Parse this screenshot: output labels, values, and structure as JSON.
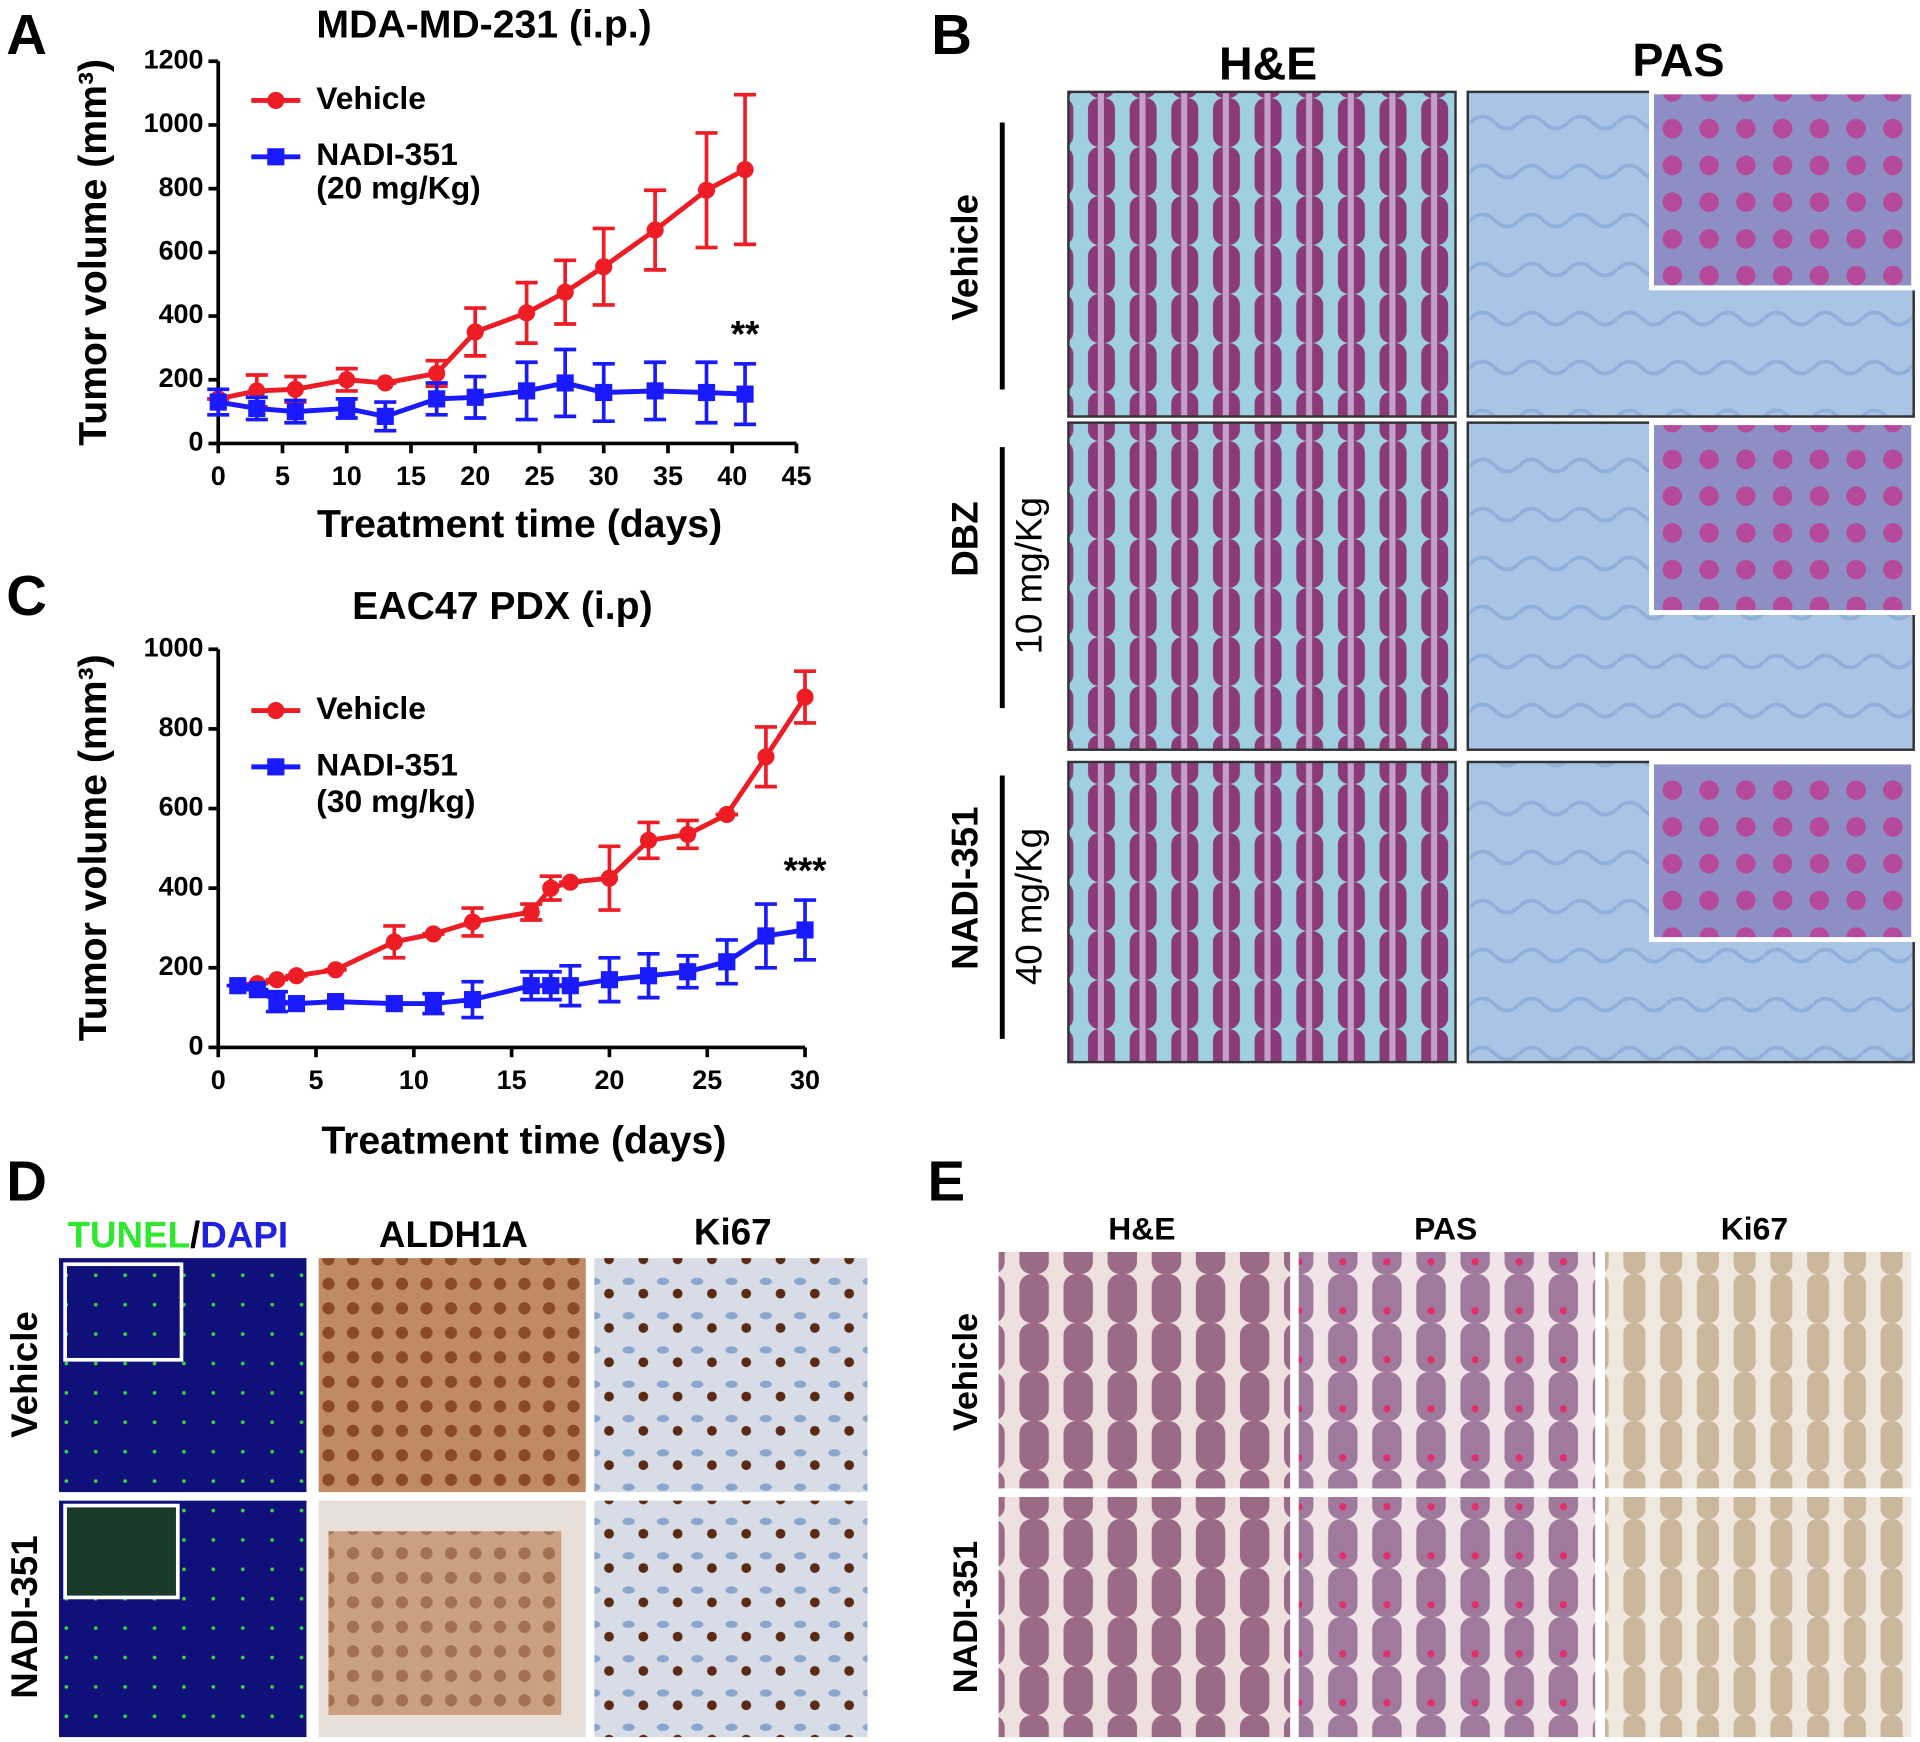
{
  "chart_data": [
    {
      "type": "line",
      "panel_label": "A",
      "title": "MDA-MD-231 (i.p.)",
      "x_label": "Treatment time (days)",
      "y_label": "Tumor volume (mm³)",
      "xlim": [
        0,
        45
      ],
      "xticks": [
        0,
        5,
        10,
        15,
        20,
        25,
        30,
        35,
        40,
        45
      ],
      "ylim": [
        0,
        1200
      ],
      "yticks": [
        0,
        200,
        400,
        600,
        800,
        1000,
        1200
      ],
      "series": [
        {
          "name": "Vehicle",
          "color": "#ee1c24",
          "marker": "circle",
          "x": [
            0,
            3,
            6,
            10,
            13,
            17,
            20,
            24,
            27,
            30,
            34,
            38,
            41
          ],
          "values": [
            140,
            165,
            170,
            200,
            190,
            220,
            350,
            410,
            475,
            555,
            670,
            795,
            860
          ],
          "errors": [
            0,
            50,
            40,
            35,
            0,
            40,
            75,
            95,
            100,
            120,
            125,
            180,
            235
          ]
        },
        {
          "name": "NADI-351",
          "dose": "(20 mg/Kg)",
          "color": "#1a1aff",
          "marker": "square",
          "x": [
            0,
            3,
            6,
            10,
            13,
            17,
            20,
            24,
            27,
            30,
            34,
            38,
            41
          ],
          "values": [
            130,
            110,
            100,
            110,
            85,
            140,
            145,
            165,
            190,
            160,
            165,
            160,
            155
          ],
          "errors": [
            40,
            35,
            35,
            30,
            45,
            50,
            65,
            90,
            105,
            90,
            90,
            95,
            95
          ]
        }
      ],
      "annotations": [
        "**"
      ]
    },
    {
      "type": "line",
      "panel_label": "C",
      "title": "EAC47 PDX (i.p)",
      "x_label": "Treatment time (days)",
      "y_label": "Tumor volume (mm³)",
      "xlim": [
        0,
        30
      ],
      "xticks": [
        0,
        5,
        10,
        15,
        20,
        25,
        30
      ],
      "ylim": [
        0,
        1000
      ],
      "yticks": [
        0,
        200,
        400,
        600,
        800,
        1000
      ],
      "series": [
        {
          "name": "Vehicle",
          "color": "#ee1c24",
          "marker": "circle",
          "x": [
            1,
            2,
            3,
            4,
            6,
            9,
            11,
            13,
            16,
            17,
            18,
            20,
            22,
            24,
            26,
            28,
            30
          ],
          "values": [
            155,
            160,
            170,
            180,
            195,
            265,
            285,
            315,
            340,
            400,
            415,
            425,
            520,
            535,
            585,
            730,
            880
          ],
          "errors": [
            0,
            0,
            0,
            0,
            0,
            40,
            0,
            35,
            20,
            30,
            0,
            80,
            45,
            35,
            0,
            75,
            65
          ]
        },
        {
          "name": "NADI-351",
          "dose": "(30 mg/kg)",
          "color": "#1a1aff",
          "marker": "square",
          "x": [
            1,
            2,
            3,
            4,
            6,
            9,
            11,
            13,
            16,
            17,
            18,
            20,
            22,
            24,
            26,
            28,
            30
          ],
          "values": [
            155,
            145,
            115,
            110,
            115,
            110,
            110,
            120,
            155,
            155,
            155,
            170,
            180,
            190,
            215,
            280,
            295
          ],
          "errors": [
            0,
            0,
            25,
            0,
            0,
            0,
            25,
            45,
            35,
            35,
            50,
            55,
            55,
            40,
            55,
            80,
            75
          ]
        }
      ],
      "annotations": [
        "***"
      ]
    }
  ],
  "panel_B": {
    "label": "B",
    "columns": [
      "H&E",
      "PAS"
    ],
    "rows": [
      {
        "name": "Vehicle"
      },
      {
        "name": "DBZ",
        "dose": "10 mg/Kg"
      },
      {
        "name": "NADI-351",
        "dose": "40 mg/Kg"
      }
    ]
  },
  "panel_D": {
    "label": "D",
    "first_column": [
      "TUNEL",
      "/",
      "DAPI"
    ],
    "columns": [
      "ALDH1A",
      "Ki67"
    ],
    "rows": [
      "Vehicle",
      "NADI-351"
    ]
  },
  "panel_E": {
    "label": "E",
    "columns": [
      "H&E",
      "PAS",
      "Ki67"
    ],
    "rows": [
      "Vehicle",
      "NADI-351"
    ]
  }
}
